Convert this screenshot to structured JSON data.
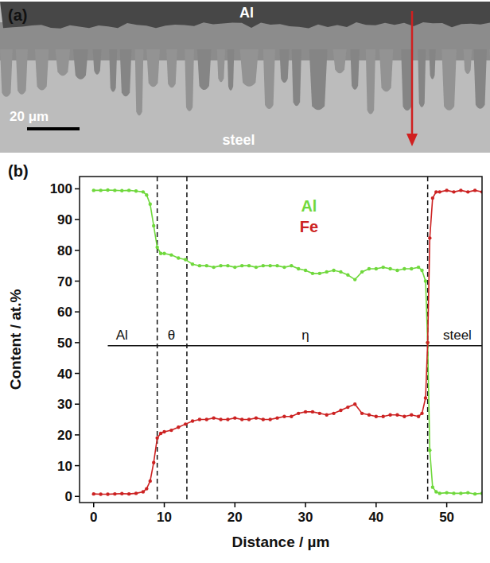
{
  "panel_a": {
    "label": "(a)",
    "top_label": "Al",
    "bottom_label": "steel",
    "scale_bar_label": "20 μm"
  },
  "chart_data": {
    "type": "line",
    "panel_label": "(b)",
    "x_label": "Distance / µm",
    "y_label": "Content / at.%",
    "x": [
      0,
      1,
      2,
      3,
      4,
      5,
      6,
      7,
      7.5,
      8,
      8.5,
      9,
      9.5,
      10,
      11,
      12,
      13,
      14,
      15,
      16,
      17,
      18,
      19,
      20,
      21,
      22,
      23,
      24,
      25,
      26,
      27,
      28,
      29,
      30,
      31,
      32,
      33,
      34,
      35,
      36,
      37,
      38,
      39,
      40,
      41,
      42,
      43,
      44,
      45,
      46,
      46.5,
      47,
      47.3,
      47.6,
      48,
      48.5,
      49,
      50,
      51,
      52,
      53,
      54,
      55
    ],
    "series": [
      {
        "name": "Al",
        "color": "#6fd83c",
        "values": [
          99.5,
          99.5,
          99.6,
          99.5,
          99.4,
          99.5,
          99.3,
          99,
          98,
          95,
          88,
          81,
          79,
          79,
          78.5,
          77.5,
          77,
          75.5,
          75,
          75,
          74.5,
          75,
          75,
          74.5,
          75,
          75,
          74.5,
          75,
          75,
          75,
          74.5,
          75,
          74,
          73.5,
          72.5,
          72.5,
          73,
          73.5,
          73,
          72,
          70.5,
          73,
          74,
          74,
          74.5,
          74,
          73.5,
          74,
          74,
          74.5,
          73.5,
          70,
          50,
          15,
          3,
          1.5,
          1,
          1.2,
          1,
          1,
          1.2,
          0.8,
          1
        ]
      },
      {
        "name": "Fe",
        "color": "#cc2222",
        "values": [
          0.8,
          0.7,
          0.7,
          0.8,
          0.9,
          0.8,
          1,
          1.5,
          2.5,
          5,
          11,
          19,
          20.5,
          21,
          21.5,
          22.5,
          23.5,
          24.5,
          25,
          25,
          25.5,
          25,
          25,
          25.5,
          25,
          25,
          25.5,
          25,
          25,
          25.5,
          26,
          26,
          27,
          27.5,
          27.5,
          27,
          26.5,
          27,
          28,
          29,
          30,
          27,
          26.5,
          26,
          26,
          26.5,
          26.5,
          26,
          26.5,
          26,
          27,
          32,
          50,
          84,
          97,
          99,
          99,
          99.5,
          99,
          99.5,
          99,
          99.5,
          99
        ]
      }
    ],
    "xlim": [
      -2,
      55
    ],
    "ylim": [
      -2,
      104
    ],
    "xticks": [
      0,
      10,
      20,
      30,
      40,
      50
    ],
    "yticks": [
      0,
      10,
      20,
      30,
      40,
      50,
      60,
      70,
      80,
      90,
      100
    ],
    "marker": "circle",
    "line_style": "solid",
    "legend": "top",
    "phase_boundaries": [
      9,
      13.2,
      47.3
    ],
    "phase_labels": [
      {
        "text": "Al",
        "x": 4
      },
      {
        "text": "θ",
        "x": 11
      },
      {
        "text": "η",
        "x": 30
      },
      {
        "text": "steel",
        "x": 51.5
      }
    ],
    "reference_line": {
      "y": 49,
      "x": [
        2,
        55
      ]
    }
  }
}
